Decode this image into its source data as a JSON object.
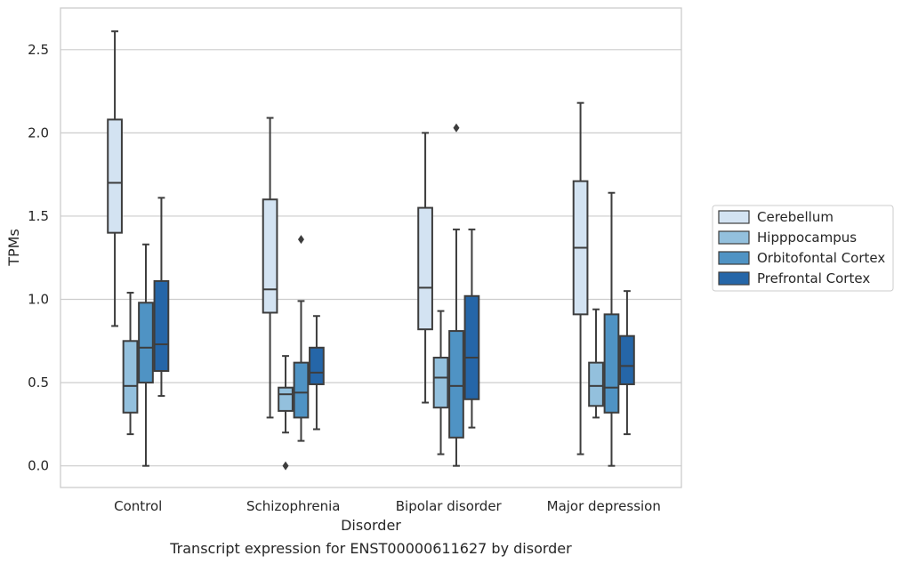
{
  "chart_data": {
    "type": "box",
    "title": "Transcript expression for ENST00000611627 by disorder",
    "xlabel": "Disorder",
    "ylabel": "TPMs",
    "categories": [
      "Control",
      "Schizophrenia",
      "Bipolar disorder",
      "Major depression"
    ],
    "ylim": [
      -0.13,
      2.75
    ],
    "yticks": [
      0.0,
      0.5,
      1.0,
      1.5,
      2.0,
      2.5
    ],
    "ytick_labels": [
      "0.0",
      "0.5",
      "1.0",
      "1.5",
      "2.0",
      "2.5"
    ],
    "grid": "horizontal",
    "legend_position": "right",
    "series": [
      {
        "name": "Cerebellum",
        "color": "#d3e3f2",
        "boxes": [
          {
            "whislo": 0.84,
            "q1": 1.4,
            "med": 1.7,
            "q3": 2.08,
            "whishi": 2.61,
            "fliers": []
          },
          {
            "whislo": 0.29,
            "q1": 0.92,
            "med": 1.06,
            "q3": 1.6,
            "whishi": 2.09,
            "fliers": []
          },
          {
            "whislo": 0.38,
            "q1": 0.82,
            "med": 1.07,
            "q3": 1.55,
            "whishi": 2.0,
            "fliers": []
          },
          {
            "whislo": 0.07,
            "q1": 0.91,
            "med": 1.31,
            "q3": 1.71,
            "whishi": 2.18,
            "fliers": []
          }
        ]
      },
      {
        "name": "Hipppocampus",
        "color": "#93c0dd",
        "boxes": [
          {
            "whislo": 0.19,
            "q1": 0.32,
            "med": 0.48,
            "q3": 0.75,
            "whishi": 1.04,
            "fliers": []
          },
          {
            "whislo": 0.2,
            "q1": 0.33,
            "med": 0.43,
            "q3": 0.47,
            "whishi": 0.66,
            "fliers": [
              0.0
            ]
          },
          {
            "whislo": 0.07,
            "q1": 0.35,
            "med": 0.53,
            "q3": 0.65,
            "whishi": 0.93,
            "fliers": []
          },
          {
            "whislo": 0.29,
            "q1": 0.36,
            "med": 0.48,
            "q3": 0.62,
            "whishi": 0.94,
            "fliers": []
          }
        ]
      },
      {
        "name": "Orbitofontal Cortex",
        "color": "#4f93c4",
        "boxes": [
          {
            "whislo": 0.0,
            "q1": 0.5,
            "med": 0.71,
            "q3": 0.98,
            "whishi": 1.33,
            "fliers": []
          },
          {
            "whislo": 0.15,
            "q1": 0.29,
            "med": 0.44,
            "q3": 0.62,
            "whishi": 0.99,
            "fliers": [
              1.36
            ]
          },
          {
            "whislo": 0.0,
            "q1": 0.17,
            "med": 0.48,
            "q3": 0.81,
            "whishi": 1.42,
            "fliers": [
              2.03
            ]
          },
          {
            "whislo": 0.0,
            "q1": 0.32,
            "med": 0.47,
            "q3": 0.91,
            "whishi": 1.64,
            "fliers": []
          }
        ]
      },
      {
        "name": "Prefrontal Cortex",
        "color": "#2566a8",
        "boxes": [
          {
            "whislo": 0.42,
            "q1": 0.57,
            "med": 0.73,
            "q3": 1.11,
            "whishi": 1.61,
            "fliers": []
          },
          {
            "whislo": 0.22,
            "q1": 0.49,
            "med": 0.56,
            "q3": 0.71,
            "whishi": 0.9,
            "fliers": []
          },
          {
            "whislo": 0.23,
            "q1": 0.4,
            "med": 0.65,
            "q3": 1.02,
            "whishi": 1.42,
            "fliers": []
          },
          {
            "whislo": 0.19,
            "q1": 0.49,
            "med": 0.6,
            "q3": 0.78,
            "whishi": 1.05,
            "fliers": []
          }
        ]
      }
    ]
  }
}
